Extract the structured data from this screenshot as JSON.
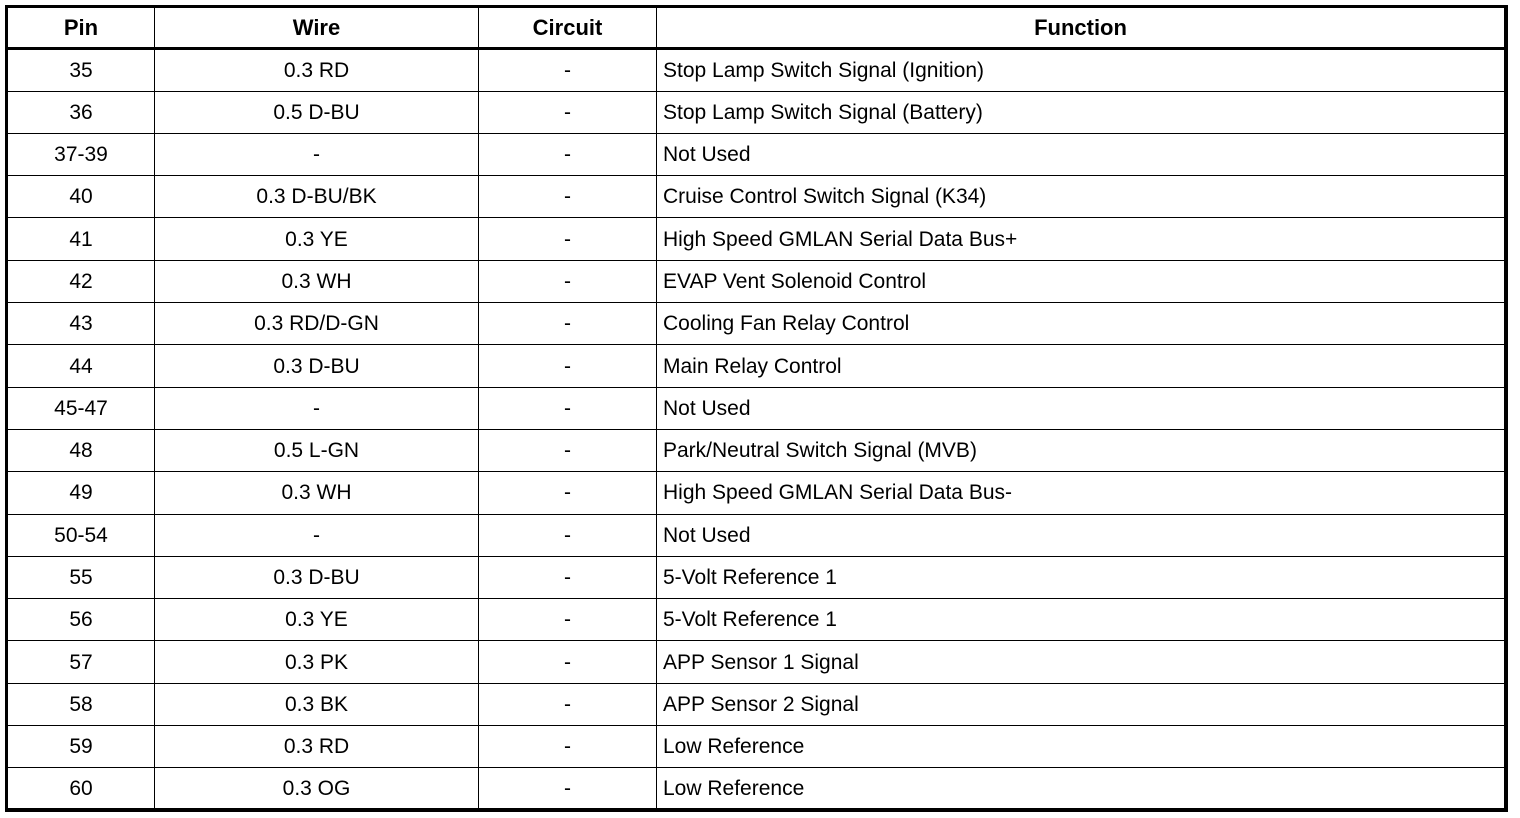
{
  "table": {
    "headers": [
      "Pin",
      "Wire",
      "Circuit",
      "Function"
    ],
    "rows": [
      [
        "35",
        "0.3 RD",
        "-",
        "Stop Lamp Switch Signal (Ignition)"
      ],
      [
        "36",
        "0.5 D-BU",
        "-",
        "Stop Lamp Switch Signal (Battery)"
      ],
      [
        "37-39",
        "-",
        "-",
        "Not Used"
      ],
      [
        "40",
        "0.3 D-BU/BK",
        "-",
        "Cruise Control Switch Signal (K34)"
      ],
      [
        "41",
        "0.3 YE",
        "-",
        "High Speed GMLAN Serial Data Bus+"
      ],
      [
        "42",
        "0.3 WH",
        "-",
        "EVAP Vent Solenoid Control"
      ],
      [
        "43",
        "0.3 RD/D-GN",
        "-",
        "Cooling Fan Relay Control"
      ],
      [
        "44",
        "0.3 D-BU",
        "-",
        "Main Relay Control"
      ],
      [
        "45-47",
        "-",
        "-",
        "Not Used"
      ],
      [
        "48",
        "0.5 L-GN",
        "-",
        "Park/Neutral Switch Signal (MVB)"
      ],
      [
        "49",
        "0.3 WH",
        "-",
        "High Speed GMLAN Serial Data Bus-"
      ],
      [
        "50-54",
        "-",
        "-",
        "Not Used"
      ],
      [
        "55",
        "0.3 D-BU",
        "-",
        "5-Volt Reference 1"
      ],
      [
        "56",
        "0.3 YE",
        "-",
        "5-Volt Reference 1"
      ],
      [
        "57",
        "0.3 PK",
        "-",
        "APP Sensor 1 Signal"
      ],
      [
        "58",
        "0.3 BK",
        "-",
        "APP Sensor 2 Signal"
      ],
      [
        "59",
        "0.3 RD",
        "-",
        "Low Reference"
      ],
      [
        "60",
        "0.3 OG",
        "-",
        "Low Reference"
      ]
    ]
  }
}
